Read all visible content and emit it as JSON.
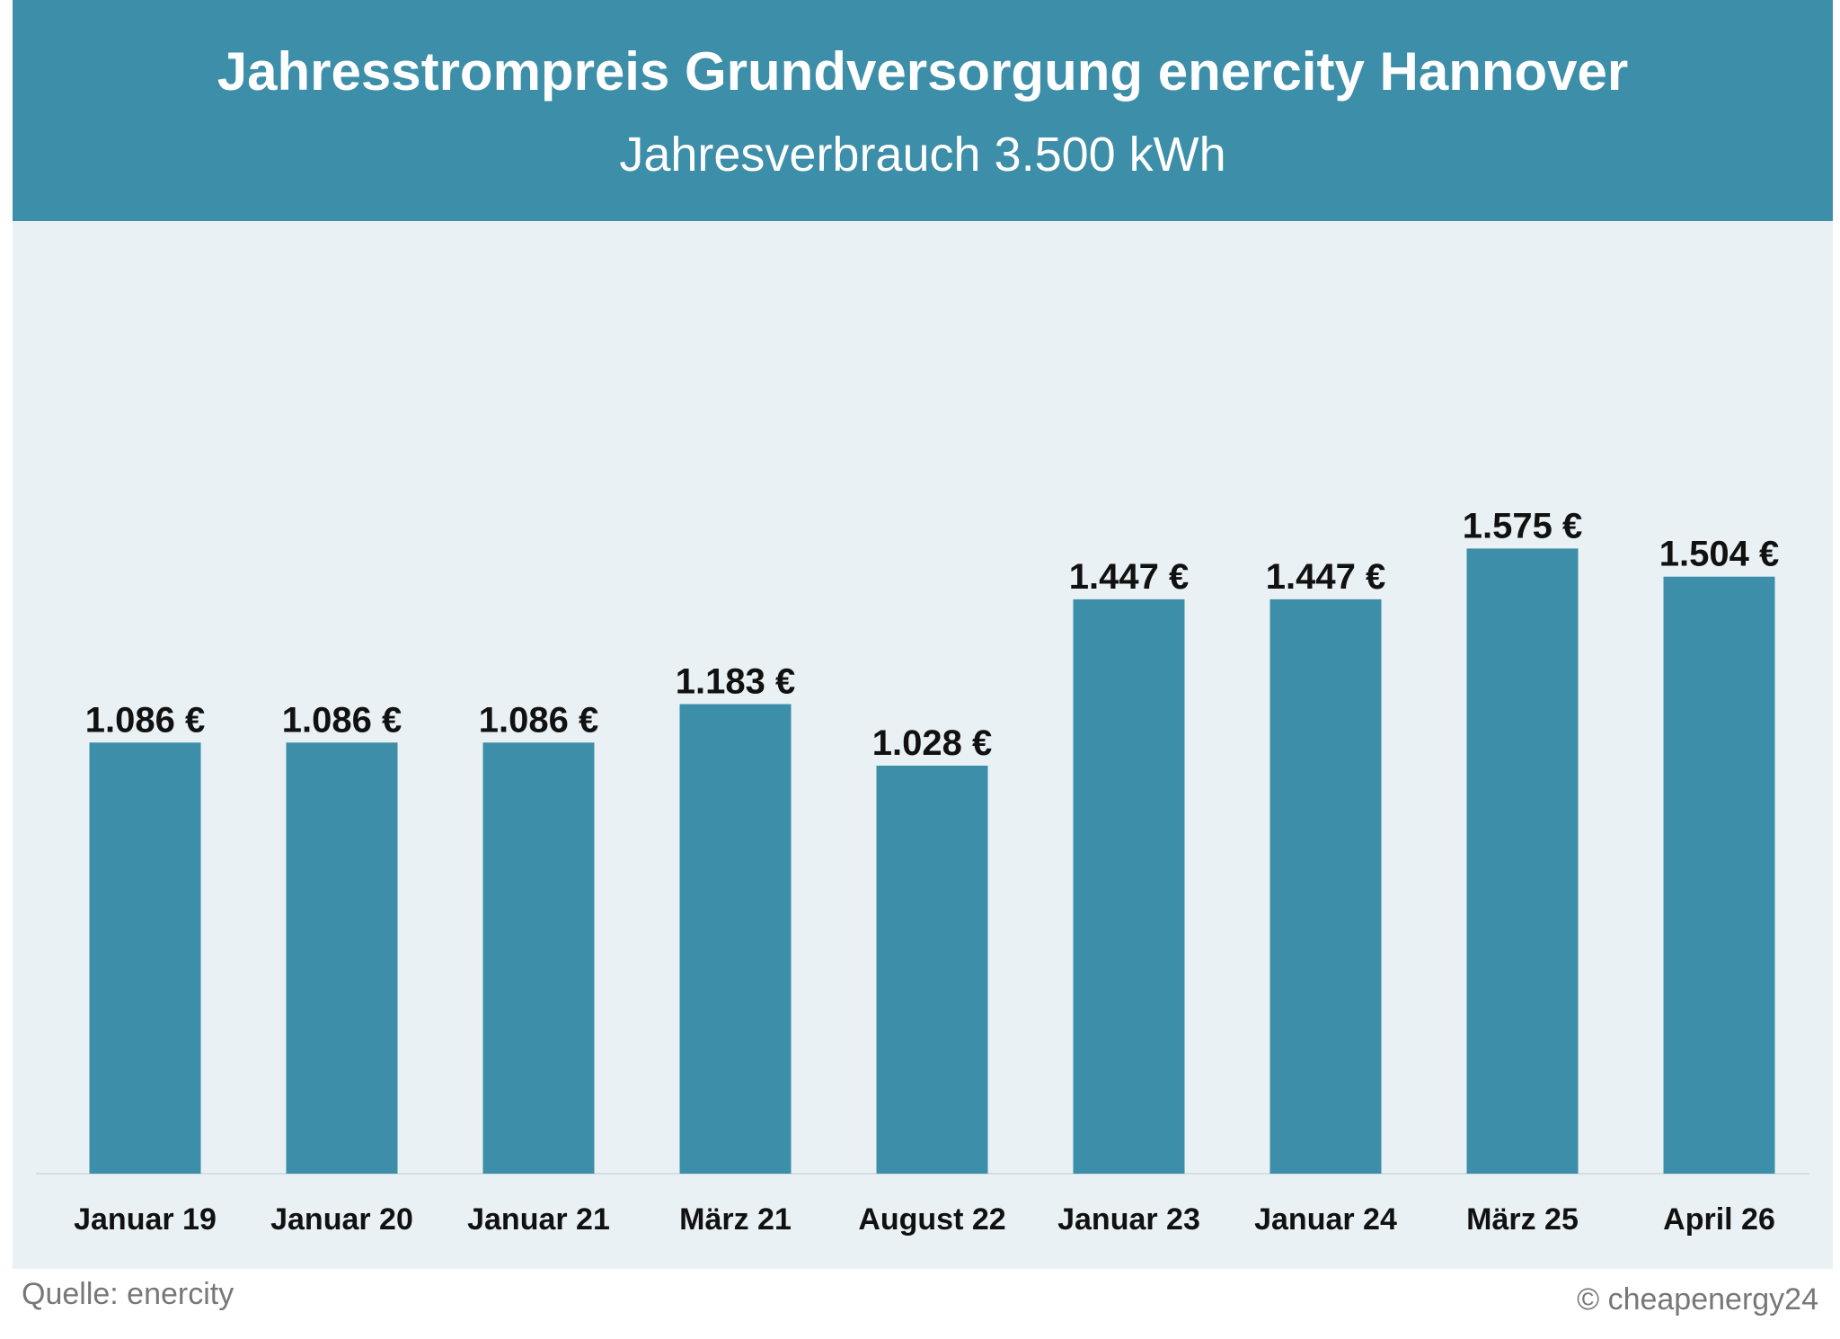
{
  "header": {
    "title": "Jahresstrompreis Grundversorgung enercity Hannover",
    "subtitle": "Jahresverbrauch 3.500 kWh"
  },
  "footer": {
    "source": "Quelle: enercity",
    "copyright": "© cheapenergy24"
  },
  "colors": {
    "header_bg": "#3d8ea8",
    "bar": "#3d8ea8",
    "plot_bg": "#e9f1f4"
  },
  "chart_data": {
    "type": "bar",
    "title": "Jahresstrompreis Grundversorgung enercity Hannover",
    "subtitle": "Jahresverbrauch 3.500 kWh",
    "xlabel": "",
    "ylabel": "",
    "grid": false,
    "legend": "none",
    "categories": [
      "Januar 19",
      "Januar 20",
      "Januar 21",
      "März 21",
      "August 22",
      "Januar 23",
      "Januar 24",
      "März 25",
      "April 26"
    ],
    "values": [
      1086,
      1086,
      1086,
      1183,
      1028,
      1447,
      1447,
      1575,
      1504
    ],
    "value_labels": [
      "1.086 €",
      "1.086 €",
      "1.086 €",
      "1.183 €",
      "1.028 €",
      "1.447 €",
      "1.447 €",
      "1.575 €",
      "1.504 €"
    ],
    "ylim": [
      0,
      2400
    ]
  }
}
